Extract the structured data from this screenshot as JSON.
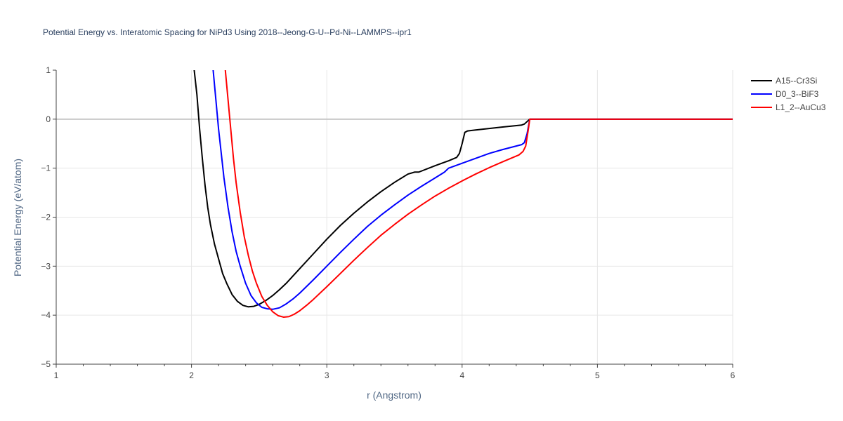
{
  "chart_data": {
    "type": "line",
    "title": "Potential Energy vs. Interatomic Spacing for NiPd3 Using 2018--Jeong-G-U--Pd-Ni--LAMMPS--ipr1",
    "xlabel": "r (Angstrom)",
    "ylabel": "Potential Energy (eV/atom)",
    "xlim": [
      1,
      6
    ],
    "ylim": [
      -5,
      1
    ],
    "xticks": [
      "1",
      "2",
      "3",
      "4",
      "5",
      "6"
    ],
    "yticks": [
      "1",
      "0",
      "−1",
      "−2",
      "−3",
      "−4",
      "−5"
    ],
    "grid": true,
    "legend_position": "top-right",
    "series": [
      {
        "name": "A15--Cr3Si",
        "color": "#000000",
        "x": [
          2.02,
          2.04,
          2.06,
          2.08,
          2.1,
          2.12,
          2.14,
          2.17,
          2.2,
          2.23,
          2.26,
          2.3,
          2.34,
          2.38,
          2.42,
          2.46,
          2.5,
          2.55,
          2.6,
          2.65,
          2.7,
          2.8,
          2.9,
          3.0,
          3.1,
          3.2,
          3.3,
          3.4,
          3.5,
          3.6,
          3.65,
          3.68,
          3.8,
          3.9,
          3.96,
          3.98,
          4.0,
          4.02,
          4.04,
          4.1,
          4.2,
          4.3,
          4.44,
          4.46,
          4.48,
          4.5,
          4.6,
          4.8,
          5.0,
          5.5,
          6.0
        ],
        "values": [
          1.0,
          0.5,
          -0.2,
          -0.8,
          -1.35,
          -1.8,
          -2.15,
          -2.55,
          -2.85,
          -3.15,
          -3.35,
          -3.58,
          -3.72,
          -3.8,
          -3.83,
          -3.82,
          -3.78,
          -3.7,
          -3.6,
          -3.48,
          -3.35,
          -3.05,
          -2.75,
          -2.45,
          -2.17,
          -1.92,
          -1.69,
          -1.48,
          -1.29,
          -1.12,
          -1.08,
          -1.08,
          -0.95,
          -0.85,
          -0.78,
          -0.7,
          -0.5,
          -0.27,
          -0.24,
          -0.22,
          -0.19,
          -0.16,
          -0.12,
          -0.1,
          -0.05,
          0.0,
          0.0,
          0.0,
          0.0,
          0.0,
          0.0
        ]
      },
      {
        "name": "D0_3--BiF3",
        "color": "#0000ff",
        "x": [
          2.16,
          2.18,
          2.2,
          2.22,
          2.24,
          2.27,
          2.3,
          2.33,
          2.36,
          2.4,
          2.44,
          2.48,
          2.52,
          2.56,
          2.6,
          2.65,
          2.7,
          2.75,
          2.8,
          2.9,
          3.0,
          3.1,
          3.2,
          3.3,
          3.4,
          3.5,
          3.6,
          3.7,
          3.8,
          3.87,
          3.9,
          4.0,
          4.1,
          4.2,
          4.3,
          4.44,
          4.46,
          4.48,
          4.5,
          4.6,
          4.8,
          5.0,
          5.5,
          6.0
        ],
        "values": [
          1.0,
          0.4,
          -0.2,
          -0.7,
          -1.2,
          -1.8,
          -2.3,
          -2.7,
          -3.0,
          -3.35,
          -3.6,
          -3.75,
          -3.84,
          -3.87,
          -3.88,
          -3.85,
          -3.77,
          -3.67,
          -3.55,
          -3.28,
          -3.0,
          -2.72,
          -2.45,
          -2.19,
          -1.96,
          -1.75,
          -1.55,
          -1.37,
          -1.2,
          -1.08,
          -1.0,
          -0.9,
          -0.8,
          -0.7,
          -0.62,
          -0.52,
          -0.48,
          -0.3,
          0.0,
          0.0,
          0.0,
          0.0,
          0.0,
          0.0
        ]
      },
      {
        "name": "L1_2--AuCu3",
        "color": "#ff0000",
        "x": [
          2.25,
          2.27,
          2.29,
          2.31,
          2.33,
          2.36,
          2.39,
          2.42,
          2.45,
          2.48,
          2.52,
          2.56,
          2.6,
          2.64,
          2.68,
          2.72,
          2.76,
          2.8,
          2.85,
          2.9,
          3.0,
          3.1,
          3.2,
          3.3,
          3.4,
          3.5,
          3.6,
          3.7,
          3.8,
          3.9,
          4.0,
          4.1,
          4.2,
          4.3,
          4.42,
          4.45,
          4.47,
          4.49,
          4.5,
          4.6,
          4.8,
          5.0,
          5.5,
          6.0
        ],
        "values": [
          1.0,
          0.4,
          -0.2,
          -0.8,
          -1.3,
          -1.9,
          -2.4,
          -2.78,
          -3.1,
          -3.35,
          -3.62,
          -3.8,
          -3.93,
          -4.01,
          -4.04,
          -4.03,
          -3.98,
          -3.91,
          -3.8,
          -3.68,
          -3.42,
          -3.15,
          -2.88,
          -2.62,
          -2.37,
          -2.15,
          -1.94,
          -1.75,
          -1.57,
          -1.41,
          -1.26,
          -1.12,
          -0.99,
          -0.87,
          -0.73,
          -0.66,
          -0.55,
          -0.2,
          0.0,
          0.0,
          0.0,
          0.0,
          0.0,
          0.0
        ]
      }
    ]
  }
}
